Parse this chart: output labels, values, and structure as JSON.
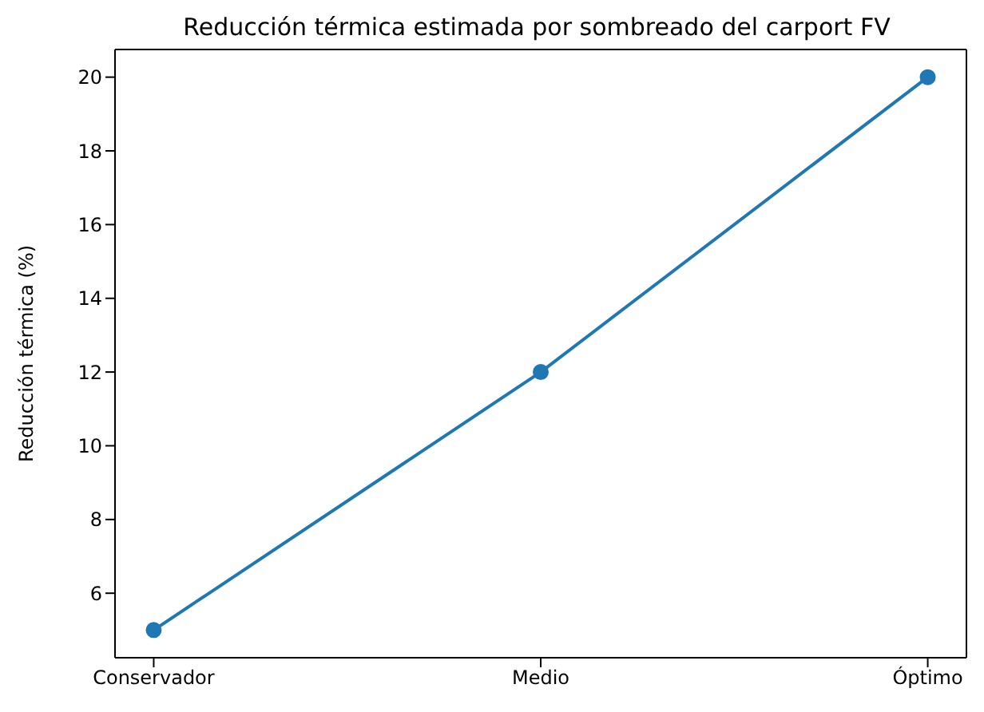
{
  "chart_data": {
    "type": "line",
    "title": "Reducción térmica estimada por sombreado del carport FV",
    "ylabel": "Reducción térmica (%)",
    "categories": [
      "Conservador",
      "Medio",
      "Óptimo"
    ],
    "series": [
      {
        "color": "#1f77b4",
        "values": [
          5,
          12,
          20
        ]
      }
    ],
    "ylim": [
      4.25,
      20.75
    ],
    "yticks": [
      6,
      8,
      10,
      12,
      14,
      16,
      18,
      20
    ],
    "grid": false,
    "legend": false,
    "marker": "circle",
    "line_style": "solid"
  }
}
